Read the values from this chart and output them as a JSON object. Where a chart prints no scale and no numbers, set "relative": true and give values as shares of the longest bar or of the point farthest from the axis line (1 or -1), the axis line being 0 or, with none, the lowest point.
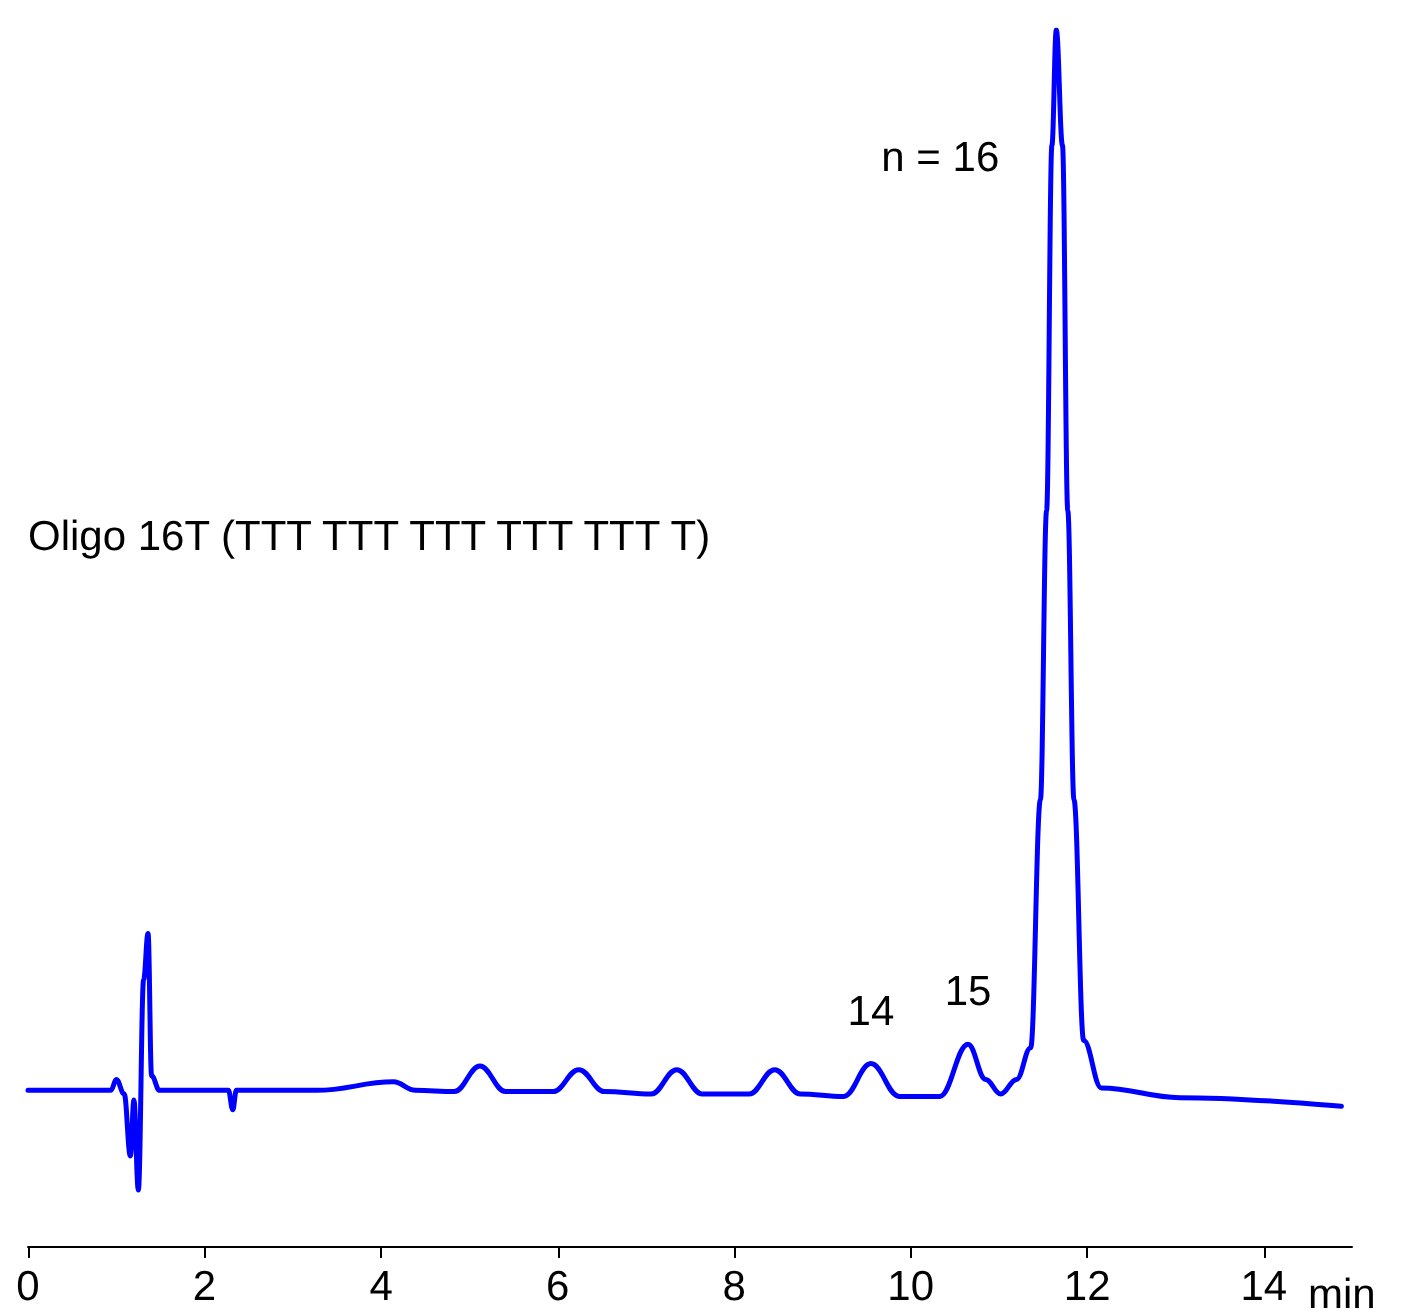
{
  "chart_data": {
    "type": "line",
    "relative": true,
    "xlabel": "min",
    "xlim": [
      0,
      15
    ],
    "xticks": [
      0,
      2,
      4,
      6,
      8,
      10,
      12,
      14
    ],
    "grid": false,
    "marker": "none",
    "line_style": "solid",
    "annotations": [
      "Oligo 16T (TTT TTT TTT TTT TTT T)",
      {
        "text": "14",
        "x": 9.55,
        "y": 0.15
      },
      {
        "text": "15",
        "x": 10.65,
        "y": 0.166
      },
      {
        "text": "n = 16",
        "x": 11.65,
        "y": 1.0
      }
    ],
    "series": [
      {
        "color": "#0000ff",
        "x": [
          0,
          0.94,
          1.0,
          1.09,
          1.16,
          1.2,
          1.25,
          1.31,
          1.36,
          1.4,
          1.49,
          2.27,
          2.32,
          2.36,
          3.27,
          4.14,
          4.39,
          4.83,
          5.12,
          5.41,
          5.95,
          6.24,
          6.53,
          7.06,
          7.35,
          7.64,
          8.17,
          8.46,
          8.75,
          9.24,
          9.55,
          9.87,
          10.33,
          10.65,
          10.85,
          11.02,
          11.2,
          11.36,
          11.47,
          11.54,
          11.6,
          11.65,
          11.72,
          11.78,
          11.85,
          11.96,
          12.16,
          13.05,
          14.88
        ],
        "values": [
          0.128,
          0.128,
          0.137,
          0.125,
          0.074,
          0.12,
          0.046,
          0.219,
          0.257,
          0.14,
          0.128,
          0.128,
          0.112,
          0.128,
          0.128,
          0.135,
          0.128,
          0.127,
          0.148,
          0.127,
          0.127,
          0.145,
          0.127,
          0.125,
          0.145,
          0.125,
          0.125,
          0.145,
          0.125,
          0.123,
          0.15,
          0.123,
          0.123,
          0.166,
          0.137,
          0.125,
          0.137,
          0.163,
          0.367,
          0.605,
          0.905,
          1.0,
          0.905,
          0.605,
          0.367,
          0.169,
          0.13,
          0.122,
          0.115
        ]
      }
    ]
  }
}
